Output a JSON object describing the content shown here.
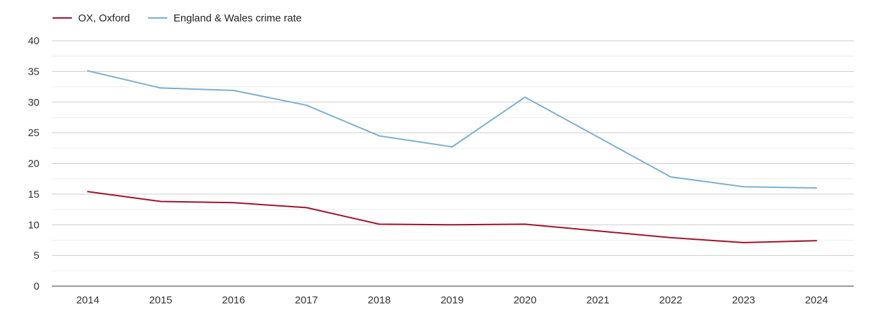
{
  "chart_data": {
    "type": "line",
    "categories": [
      "2014",
      "2015",
      "2016",
      "2017",
      "2018",
      "2019",
      "2020",
      "2021",
      "2022",
      "2023",
      "2024"
    ],
    "ylim": [
      0,
      40
    ],
    "yticks": [
      0,
      5,
      10,
      15,
      20,
      25,
      30,
      35,
      40
    ],
    "grid": true,
    "legend_position": "top-left",
    "series": [
      {
        "name": "OX, Oxford",
        "color": "#a0102f",
        "values": [
          15.4,
          13.8,
          13.6,
          12.8,
          10.1,
          10.0,
          10.1,
          9.0,
          7.9,
          7.1,
          7.4
        ]
      },
      {
        "name": "England & Wales crime rate",
        "color": "#7bafd0",
        "values": [
          35.1,
          32.3,
          31.9,
          29.5,
          24.5,
          22.7,
          30.8,
          24.3,
          17.8,
          16.2,
          16.0
        ]
      }
    ]
  }
}
